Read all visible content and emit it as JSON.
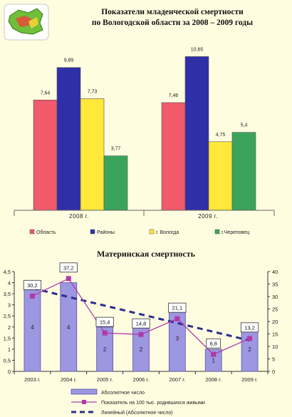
{
  "header": {
    "title_line1": "Показатели младенческой смертности",
    "title_line2": "по Вологодской области за 2008 – 2009 годы"
  },
  "colors": {
    "background": "#fffde0",
    "accent": "#3a45a8"
  },
  "chart_data": [
    {
      "type": "bar",
      "categories": [
        "2008 г.",
        "2009 г."
      ],
      "series": [
        {
          "name": "Область",
          "values": [
            7.64,
            7.46
          ],
          "labels": [
            "7,64",
            "7,46"
          ],
          "color": "#f05a6a"
        },
        {
          "name": "Районы",
          "values": [
            9.89,
            10.65
          ],
          "labels": [
            "9,89",
            "10,65"
          ],
          "color": "#2f2fa8"
        },
        {
          "name": "г. Вологда",
          "values": [
            7.73,
            4.75
          ],
          "labels": [
            "7,73",
            "4,75"
          ],
          "color": "#ffe83a"
        },
        {
          "name": "г.Череповец",
          "values": [
            3.77,
            5.4
          ],
          "labels": [
            "3,77",
            "5,4"
          ],
          "color": "#3aa55a"
        }
      ],
      "ylim": [
        0,
        12
      ],
      "grid": false,
      "legend": "bottom"
    },
    {
      "type": "bar",
      "title": "Материнская смертность",
      "categories": [
        "2003 г.",
        "2004 г.",
        "2005 г.",
        "2006 г.",
        "2007 г.",
        "2008 г.",
        "2009 г."
      ],
      "series": [
        {
          "name": "Абсолютное число",
          "type": "bar",
          "axis": "left",
          "values": [
            4,
            4,
            2,
            2,
            3,
            1,
            2
          ],
          "labels": [
            "4",
            "4",
            "2",
            "2",
            "3",
            "1",
            "2"
          ],
          "color": "#9d96e0"
        },
        {
          "name": "Показатель на 100 тыс. родившихся живыми",
          "type": "line",
          "axis": "right",
          "values": [
            30.2,
            37.2,
            15.4,
            14.8,
            21.1,
            6.8,
            13.2
          ],
          "labels": [
            "30,2",
            "37,2",
            "15,4",
            "14,8",
            "21,1",
            "6,8",
            "13,2"
          ],
          "color": "#b03aa8"
        },
        {
          "name": "Линейный (Абсолютное число)",
          "type": "trendline",
          "axis": "left",
          "color": "#2a2f8f"
        }
      ],
      "left_axis": {
        "ylim": [
          0,
          4.5
        ],
        "ticks": [
          "0",
          "0,5",
          "1",
          "1,5",
          "2",
          "2,5",
          "3",
          "3,5",
          "4",
          "4,5"
        ]
      },
      "right_axis": {
        "ylim": [
          0,
          40
        ],
        "ticks": [
          "0",
          "5",
          "10",
          "15",
          "20",
          "25",
          "30",
          "35",
          "40"
        ]
      },
      "grid": false,
      "legend": "bottom"
    }
  ]
}
